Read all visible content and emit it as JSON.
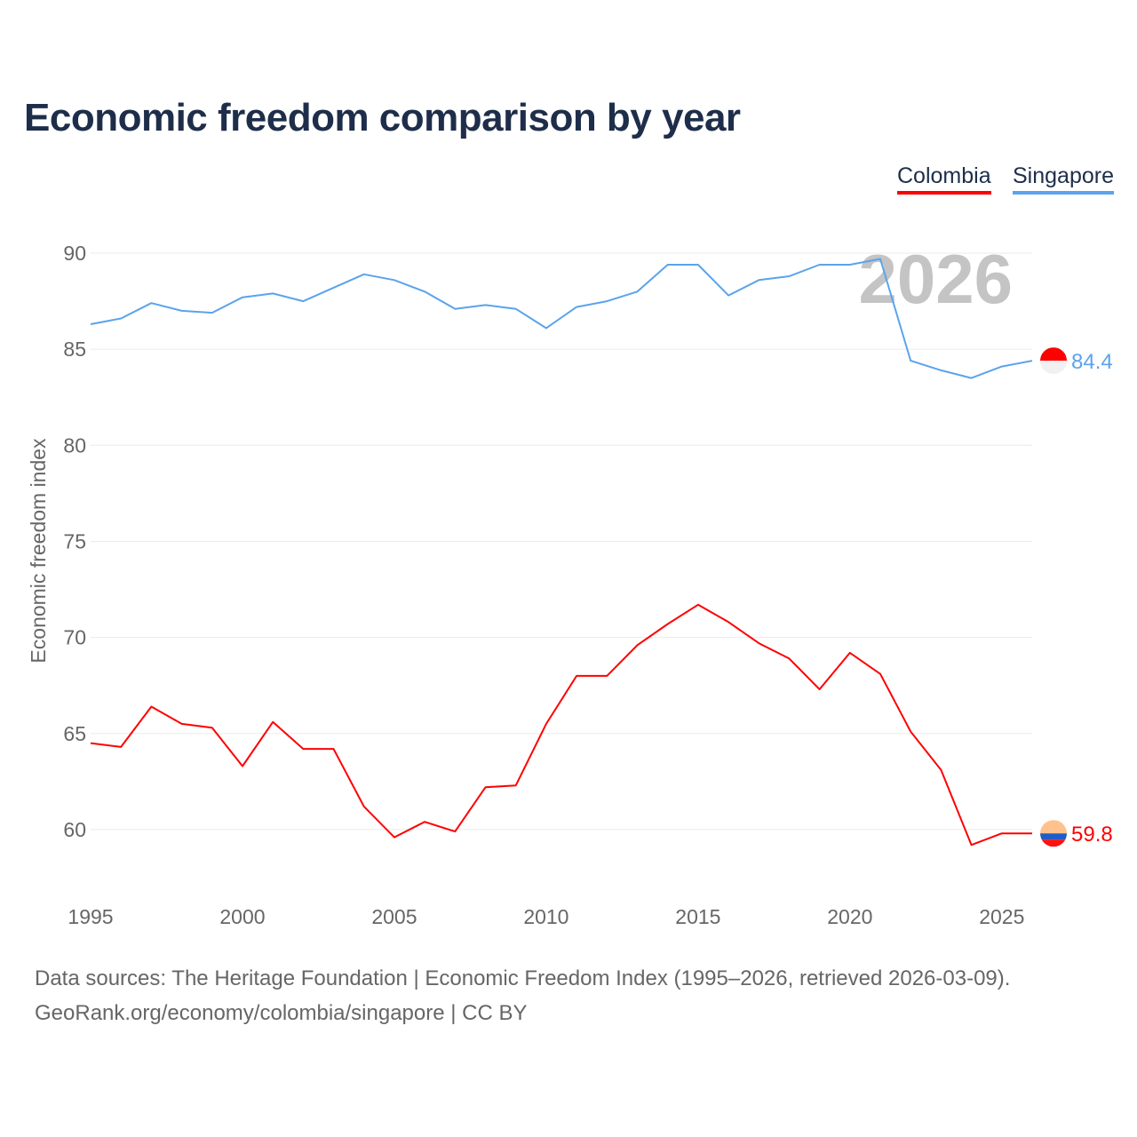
{
  "chart_data": {
    "type": "line",
    "title": "Economic freedom comparison by year",
    "xlabel": "",
    "ylabel": "Economic freedom index",
    "x": [
      1995,
      1996,
      1997,
      1998,
      1999,
      2000,
      2001,
      2002,
      2003,
      2004,
      2005,
      2006,
      2007,
      2008,
      2009,
      2010,
      2011,
      2012,
      2013,
      2014,
      2015,
      2016,
      2017,
      2018,
      2019,
      2020,
      2021,
      2022,
      2023,
      2024,
      2025,
      2026
    ],
    "xticks": [
      "1995",
      "2000",
      "2005",
      "2010",
      "2015",
      "2020",
      "2025"
    ],
    "yticks": [
      "60",
      "65",
      "70",
      "75",
      "80",
      "85",
      "90"
    ],
    "xlim": [
      1995,
      2026
    ],
    "ylim": [
      57,
      91
    ],
    "grid": true,
    "legend_placement": "top-right",
    "year_watermark": "2026",
    "series": [
      {
        "name": "Colombia",
        "color": "#ff0000",
        "end_label": "59.8",
        "values": [
          64.5,
          64.3,
          66.4,
          65.5,
          65.3,
          63.3,
          65.6,
          64.2,
          64.2,
          61.2,
          59.6,
          60.4,
          59.9,
          62.2,
          62.3,
          65.5,
          68.0,
          68.0,
          69.6,
          70.7,
          71.7,
          70.8,
          69.7,
          68.9,
          67.3,
          69.2,
          68.1,
          65.1,
          63.1,
          59.2,
          59.8,
          59.8
        ]
      },
      {
        "name": "Singapore",
        "color": "#5ba3ec",
        "end_label": "84.4",
        "values": [
          86.3,
          86.6,
          87.4,
          87.0,
          86.9,
          87.7,
          87.9,
          87.5,
          88.2,
          88.9,
          88.6,
          88.0,
          87.1,
          87.3,
          87.1,
          86.1,
          87.2,
          87.5,
          88.0,
          89.4,
          89.4,
          87.8,
          88.6,
          88.8,
          89.4,
          89.4,
          89.7,
          84.4,
          83.9,
          83.5,
          84.1,
          84.4
        ]
      }
    ]
  },
  "footer": {
    "line1": "Data sources: The Heritage Foundation | Economic Freedom Index (1995–2026, retrieved 2026-03-09).",
    "line2": "GeoRank.org/economy/colombia/singapore | CC BY"
  }
}
